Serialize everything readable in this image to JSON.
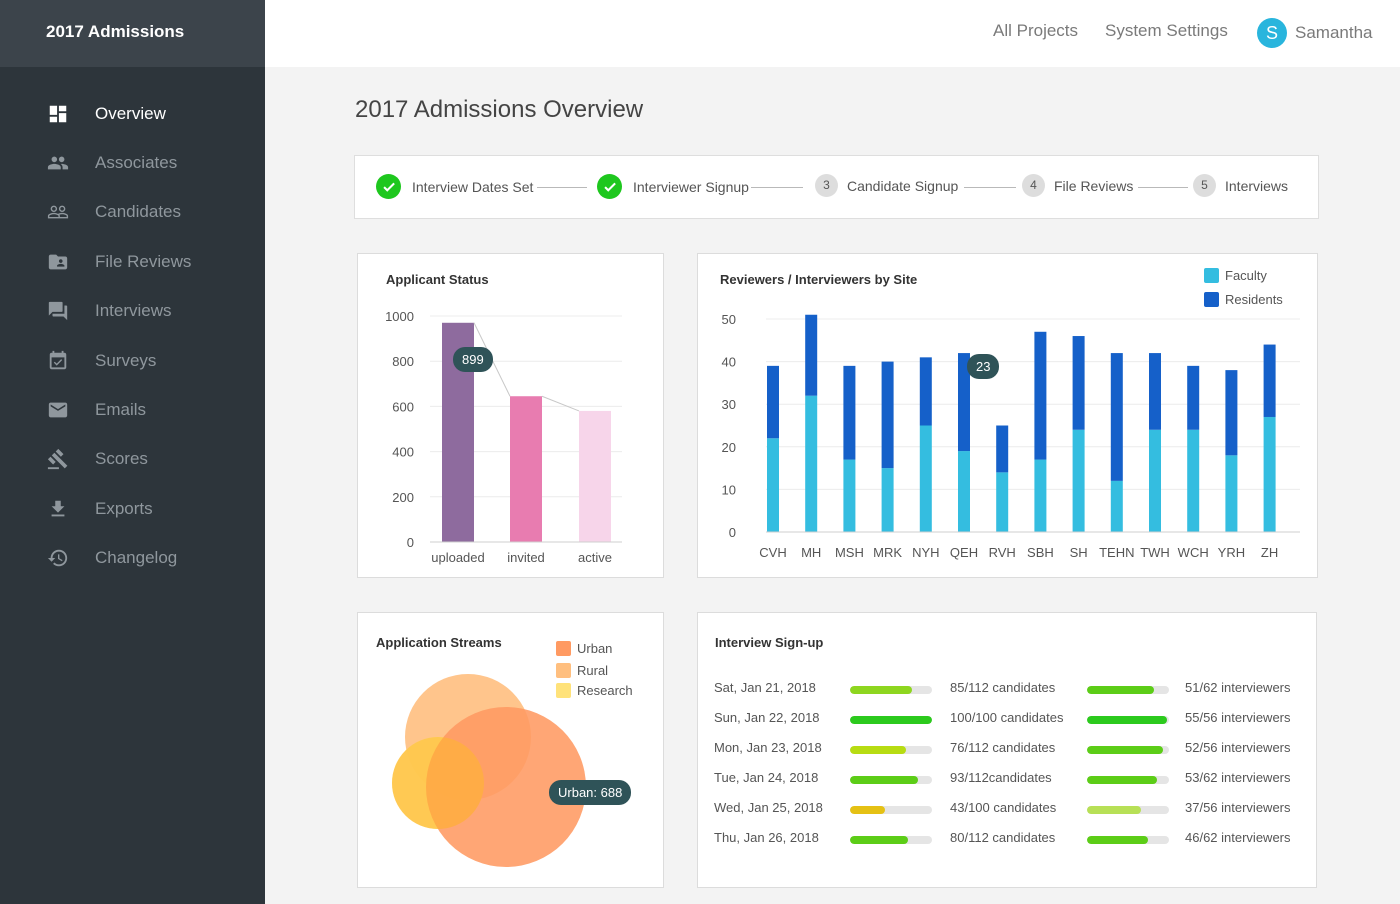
{
  "app": {
    "title": "2017 Admissions"
  },
  "sidebar": {
    "items": [
      {
        "label": "Overview",
        "icon": "dashboard-icon",
        "active": true
      },
      {
        "label": "Associates",
        "icon": "group-icon",
        "active": false
      },
      {
        "label": "Candidates",
        "icon": "people-outline-icon",
        "active": false
      },
      {
        "label": "File Reviews",
        "icon": "folder-user-icon",
        "active": false
      },
      {
        "label": "Interviews",
        "icon": "chat-icon",
        "active": false
      },
      {
        "label": "Surveys",
        "icon": "calendar-check-icon",
        "active": false
      },
      {
        "label": "Emails",
        "icon": "mail-icon",
        "active": false
      },
      {
        "label": "Scores",
        "icon": "gavel-icon",
        "active": false
      },
      {
        "label": "Exports",
        "icon": "download-icon",
        "active": false
      },
      {
        "label": "Changelog",
        "icon": "history-icon",
        "active": false
      }
    ]
  },
  "topbar": {
    "all_projects": "All Projects",
    "system_settings": "System Settings",
    "avatar_initial": "S",
    "user_name": "Samantha"
  },
  "page": {
    "title": "2017 Admissions Overview"
  },
  "steps": [
    {
      "label": "Interview Dates Set",
      "done": true,
      "num": ""
    },
    {
      "label": "Interviewer Signup",
      "done": true,
      "num": ""
    },
    {
      "label": "Candidate Signup",
      "done": false,
      "num": "3"
    },
    {
      "label": "File Reviews",
      "done": false,
      "num": "4"
    },
    {
      "label": "Interviews",
      "done": false,
      "num": "5"
    }
  ],
  "applicant_status": {
    "title": "Applicant Status",
    "tooltip": "899",
    "chart_data": {
      "type": "bar",
      "categories": [
        "uploaded",
        "invited",
        "active"
      ],
      "values": [
        970,
        645,
        580
      ],
      "colors": [
        "#8e6b9e",
        "#e87cb0",
        "#f7d5ea"
      ],
      "ylim": [
        0,
        1000
      ],
      "yticks": [
        "1000",
        "800",
        "600",
        "400",
        "200",
        "0"
      ]
    }
  },
  "reviewers_by_site": {
    "title": "Reviewers / Interviewers by Site",
    "tooltip": "23",
    "chart_data": {
      "type": "bar",
      "stacked": true,
      "categories": [
        "CVH",
        "MH",
        "MSH",
        "MRK",
        "NYH",
        "QEH",
        "RVH",
        "SBH",
        "SH",
        "TEHN",
        "TWH",
        "WCH",
        "YRH",
        "ZH"
      ],
      "series": [
        {
          "name": "Faculty",
          "color": "#34bde0",
          "values": [
            22,
            32,
            17,
            15,
            25,
            19,
            14,
            17,
            24,
            12,
            24,
            24,
            18,
            27
          ]
        },
        {
          "name": "Residents",
          "color": "#1560c9",
          "values": [
            17,
            19,
            22,
            25,
            16,
            23,
            11,
            30,
            22,
            30,
            18,
            15,
            20,
            17
          ]
        }
      ],
      "ylim": [
        0,
        50
      ],
      "yticks": [
        "50",
        "40",
        "30",
        "20",
        "10",
        "0"
      ],
      "legend": "top-right"
    }
  },
  "application_streams": {
    "title": "Application Streams",
    "legend": [
      {
        "name": "Urban",
        "color": "#ff9a62"
      },
      {
        "name": "Rural",
        "color": "#ffbf7f"
      },
      {
        "name": "Research",
        "color": "#ffe27a"
      }
    ],
    "tooltip": "Urban: 688"
  },
  "interview_signup": {
    "title": "Interview Sign-up",
    "rows": [
      {
        "date": "Sat, Jan 21, 2018",
        "cand_text": "85/112 candidates",
        "cand_frac": 0.76,
        "cand_color": "#8ed61f",
        "int_text": "51/62 interviewers",
        "int_frac": 0.82,
        "int_color": "#5ccd17"
      },
      {
        "date": "Sun, Jan 22, 2018",
        "cand_text": "100/100 candidates",
        "cand_frac": 1.0,
        "cand_color": "#2cca1d",
        "int_text": "55/56 interviewers",
        "int_frac": 0.98,
        "int_color": "#2cca1d"
      },
      {
        "date": "Mon, Jan 23, 2018",
        "cand_text": "76/112 candidates",
        "cand_frac": 0.68,
        "cand_color": "#b7dc12",
        "int_text": "52/56 interviewers",
        "int_frac": 0.93,
        "int_color": "#5ccd17"
      },
      {
        "date": "Tue, Jan 24, 2018",
        "cand_text": "93/112candidates",
        "cand_frac": 0.83,
        "cand_color": "#5ccd17",
        "int_text": "53/62 interviewers",
        "int_frac": 0.85,
        "int_color": "#5ccd17"
      },
      {
        "date": "Wed, Jan 25, 2018",
        "cand_text": "43/100 candidates",
        "cand_frac": 0.43,
        "cand_color": "#e5c114",
        "int_text": "37/56 interviewers",
        "int_frac": 0.66,
        "int_color": "#b7e056"
      },
      {
        "date": "Thu, Jan 26, 2018",
        "cand_text": "80/112 candidates",
        "cand_frac": 0.71,
        "cand_color": "#5ccd17",
        "int_text": "46/62 interviewers",
        "int_frac": 0.74,
        "int_color": "#5ccd17"
      }
    ]
  }
}
